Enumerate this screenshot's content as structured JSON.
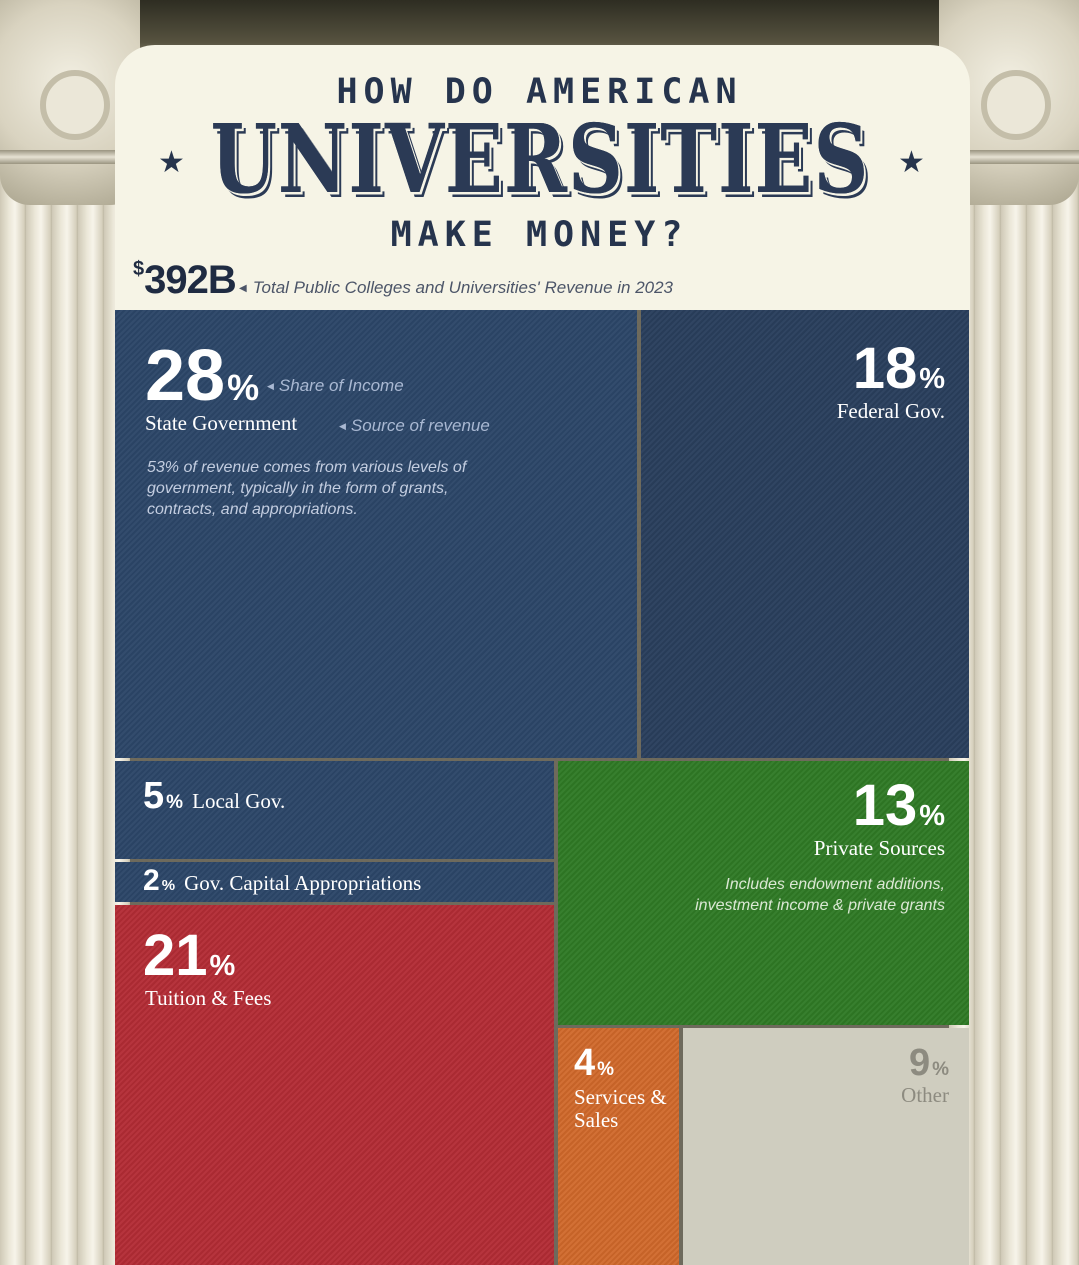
{
  "header": {
    "line1": "HOW DO AMERICAN",
    "headline": "UNIVERSITIES",
    "line3": "MAKE MONEY?",
    "star": "★"
  },
  "total": {
    "currency": "$",
    "value": "392B",
    "note": "Total Public Colleges and Universities' Revenue in 2023",
    "arrow": "◀"
  },
  "annotations": {
    "share_label": "Share of Income",
    "source_label": "Source of revenue",
    "arrow": "◀"
  },
  "colors": {
    "government": "#2c4668",
    "tuition": "#b32c35",
    "private": "#2f7a25",
    "services": "#d0682a",
    "other": "#cfcdbf"
  },
  "chart_data": {
    "type": "treemap",
    "title": "HOW DO AMERICAN UNIVERSITIES MAKE MONEY?",
    "total": "$392B",
    "unit": "%",
    "items": [
      {
        "label": "State Government",
        "value": 28,
        "pct": "28",
        "note": "53% of revenue comes from various levels of government, typically in the form of grants, contracts, and appropriations."
      },
      {
        "label": "Federal Gov.",
        "value": 18,
        "pct": "18"
      },
      {
        "label": "Local Gov.",
        "value": 5,
        "pct": "5"
      },
      {
        "label": "Gov. Capital Appropriations",
        "value": 2,
        "pct": "2"
      },
      {
        "label": "Tuition & Fees",
        "value": 21,
        "pct": "21"
      },
      {
        "label": "Private Sources",
        "value": 13,
        "pct": "13",
        "note": "Includes endowment additions, investment income & private grants"
      },
      {
        "label": "Services & Sales",
        "value": 4,
        "pct": "4"
      },
      {
        "label": "Other",
        "value": 9,
        "pct": "9"
      }
    ]
  }
}
